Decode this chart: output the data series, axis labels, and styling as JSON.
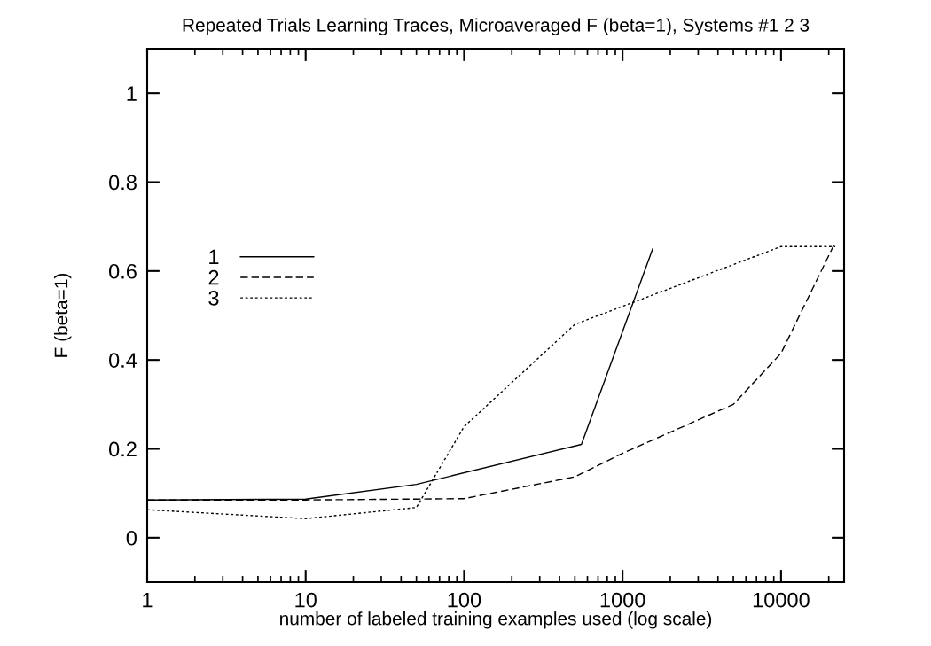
{
  "chart_data": {
    "type": "line",
    "title": "Repeated Trials Learning Traces, Microaveraged F (beta=1), Systems #1 2 3",
    "xlabel": "number of labeled training examples used (log scale)",
    "ylabel": "F (beta=1)",
    "log": "x",
    "xlim": [
      1,
      25000
    ],
    "xticks": [
      1,
      10,
      100,
      1000,
      10000
    ],
    "ylim": [
      -0.1,
      1.1
    ],
    "yticks": [
      0,
      0.2,
      0.4,
      0.6,
      0.8,
      1
    ],
    "grid": false,
    "legend": "left",
    "series": [
      {
        "name": "1",
        "color": "#000000",
        "line_style": "solid",
        "x": [
          1,
          10,
          50,
          550,
          1550
        ],
        "values": [
          0.085,
          0.087,
          0.12,
          0.21,
          0.65
        ]
      },
      {
        "name": "2",
        "color": "#000000",
        "line_style": "dashed",
        "x": [
          1,
          10,
          50,
          100,
          500,
          1000,
          5000,
          10000,
          22000
        ],
        "values": [
          0.085,
          0.085,
          0.087,
          0.088,
          0.137,
          0.19,
          0.3,
          0.415,
          0.665
        ]
      },
      {
        "name": "3",
        "color": "#000000",
        "line_style": "dotted",
        "x": [
          1,
          10,
          50,
          100,
          500,
          10000,
          22000
        ],
        "values": [
          0.063,
          0.043,
          0.068,
          0.25,
          0.48,
          0.655,
          0.655
        ]
      }
    ]
  }
}
